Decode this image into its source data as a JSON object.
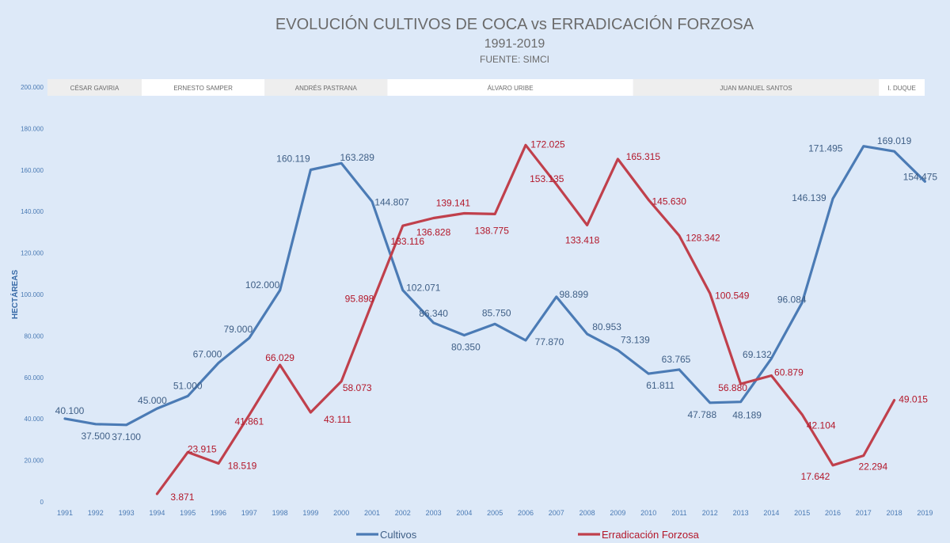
{
  "chart_data": {
    "type": "line",
    "title": "EVOLUCIÓN CULTIVOS DE COCA vs ERRADICACIÓN FORZOSA",
    "subtitle": "1991-2019",
    "source": "FUENTE: SIMCI",
    "ylabel": "HECTÁREAS",
    "xlabel": "",
    "ylim": [
      0,
      200000
    ],
    "yticks": [
      0,
      20000,
      40000,
      60000,
      80000,
      100000,
      120000,
      140000,
      160000,
      180000,
      200000
    ],
    "ytick_labels": [
      "0",
      "20.000",
      "40.000",
      "60.000",
      "80.000",
      "100.000",
      "120.000",
      "140.000",
      "160.000",
      "180.000",
      "200.000"
    ],
    "x": [
      "1991",
      "1992",
      "1993",
      "1994",
      "1995",
      "1996",
      "1997",
      "1998",
      "1999",
      "2000",
      "2001",
      "2002",
      "2003",
      "2004",
      "2005",
      "2006",
      "2007",
      "2008",
      "2009",
      "2010",
      "2011",
      "2012",
      "2013",
      "2014",
      "2015",
      "2016",
      "2017",
      "2018",
      "2019"
    ],
    "legend_position": "bottom",
    "periods": [
      {
        "name": "CÉSAR GAVIRIA",
        "start": "1991",
        "end": "1993"
      },
      {
        "name": "ERNESTO SAMPER",
        "start": "1994",
        "end": "1997"
      },
      {
        "name": "ANDRÉS PASTRANA",
        "start": "1998",
        "end": "2001"
      },
      {
        "name": "ÁLVARO URIBE",
        "start": "2002",
        "end": "2009"
      },
      {
        "name": "JUAN MANUEL SANTOS",
        "start": "2010",
        "end": "2017"
      },
      {
        "name": "I. DUQUE",
        "start": "2018",
        "end": "2019"
      }
    ],
    "series": [
      {
        "name": "Cultivos",
        "color": "#4b7bb5",
        "values": [
          40100,
          37500,
          37100,
          45000,
          51000,
          67000,
          79000,
          102000,
          160119,
          163289,
          144807,
          102071,
          86340,
          80350,
          85750,
          77870,
          98899,
          80953,
          73139,
          61811,
          63765,
          47788,
          48189,
          69132,
          96084,
          146139,
          171495,
          169019,
          154475
        ],
        "labels": [
          "40.100",
          "37.500",
          "37.100",
          "45.000",
          "51.000",
          "67.000",
          "79.000",
          "102.000",
          "160.119",
          "163.289",
          "144.807",
          "102.071",
          "86.340",
          "80.350",
          "85.750",
          "77.870",
          "98.899",
          "80.953",
          "73.139",
          "61.811",
          "63.765",
          "47.788",
          "48.189",
          "69.132",
          "96.084",
          "146.139",
          "171.495",
          "169.019",
          "154.475"
        ]
      },
      {
        "name": "Erradicación Forzosa",
        "color": "#c0404c",
        "values": [
          null,
          null,
          null,
          3871,
          23915,
          18519,
          41861,
          66029,
          43111,
          58073,
          95898,
          133116,
          136828,
          139141,
          138775,
          172025,
          153135,
          133418,
          165315,
          145630,
          128342,
          100549,
          56880,
          60879,
          42104,
          17642,
          22294,
          49015,
          null
        ],
        "labels": [
          null,
          null,
          null,
          "3.871",
          "23.915",
          "18.519",
          "41.861",
          "66.029",
          "43.111",
          "58.073",
          "95.898",
          "133.116",
          "136.828",
          "139.141",
          "138.775",
          "172.025",
          "153.135",
          "133.418",
          "165.315",
          "145.630",
          "128.342",
          "100.549",
          "56.880",
          "60.879",
          "42.104",
          "17.642",
          "22.294",
          "49.015",
          null
        ]
      }
    ]
  }
}
